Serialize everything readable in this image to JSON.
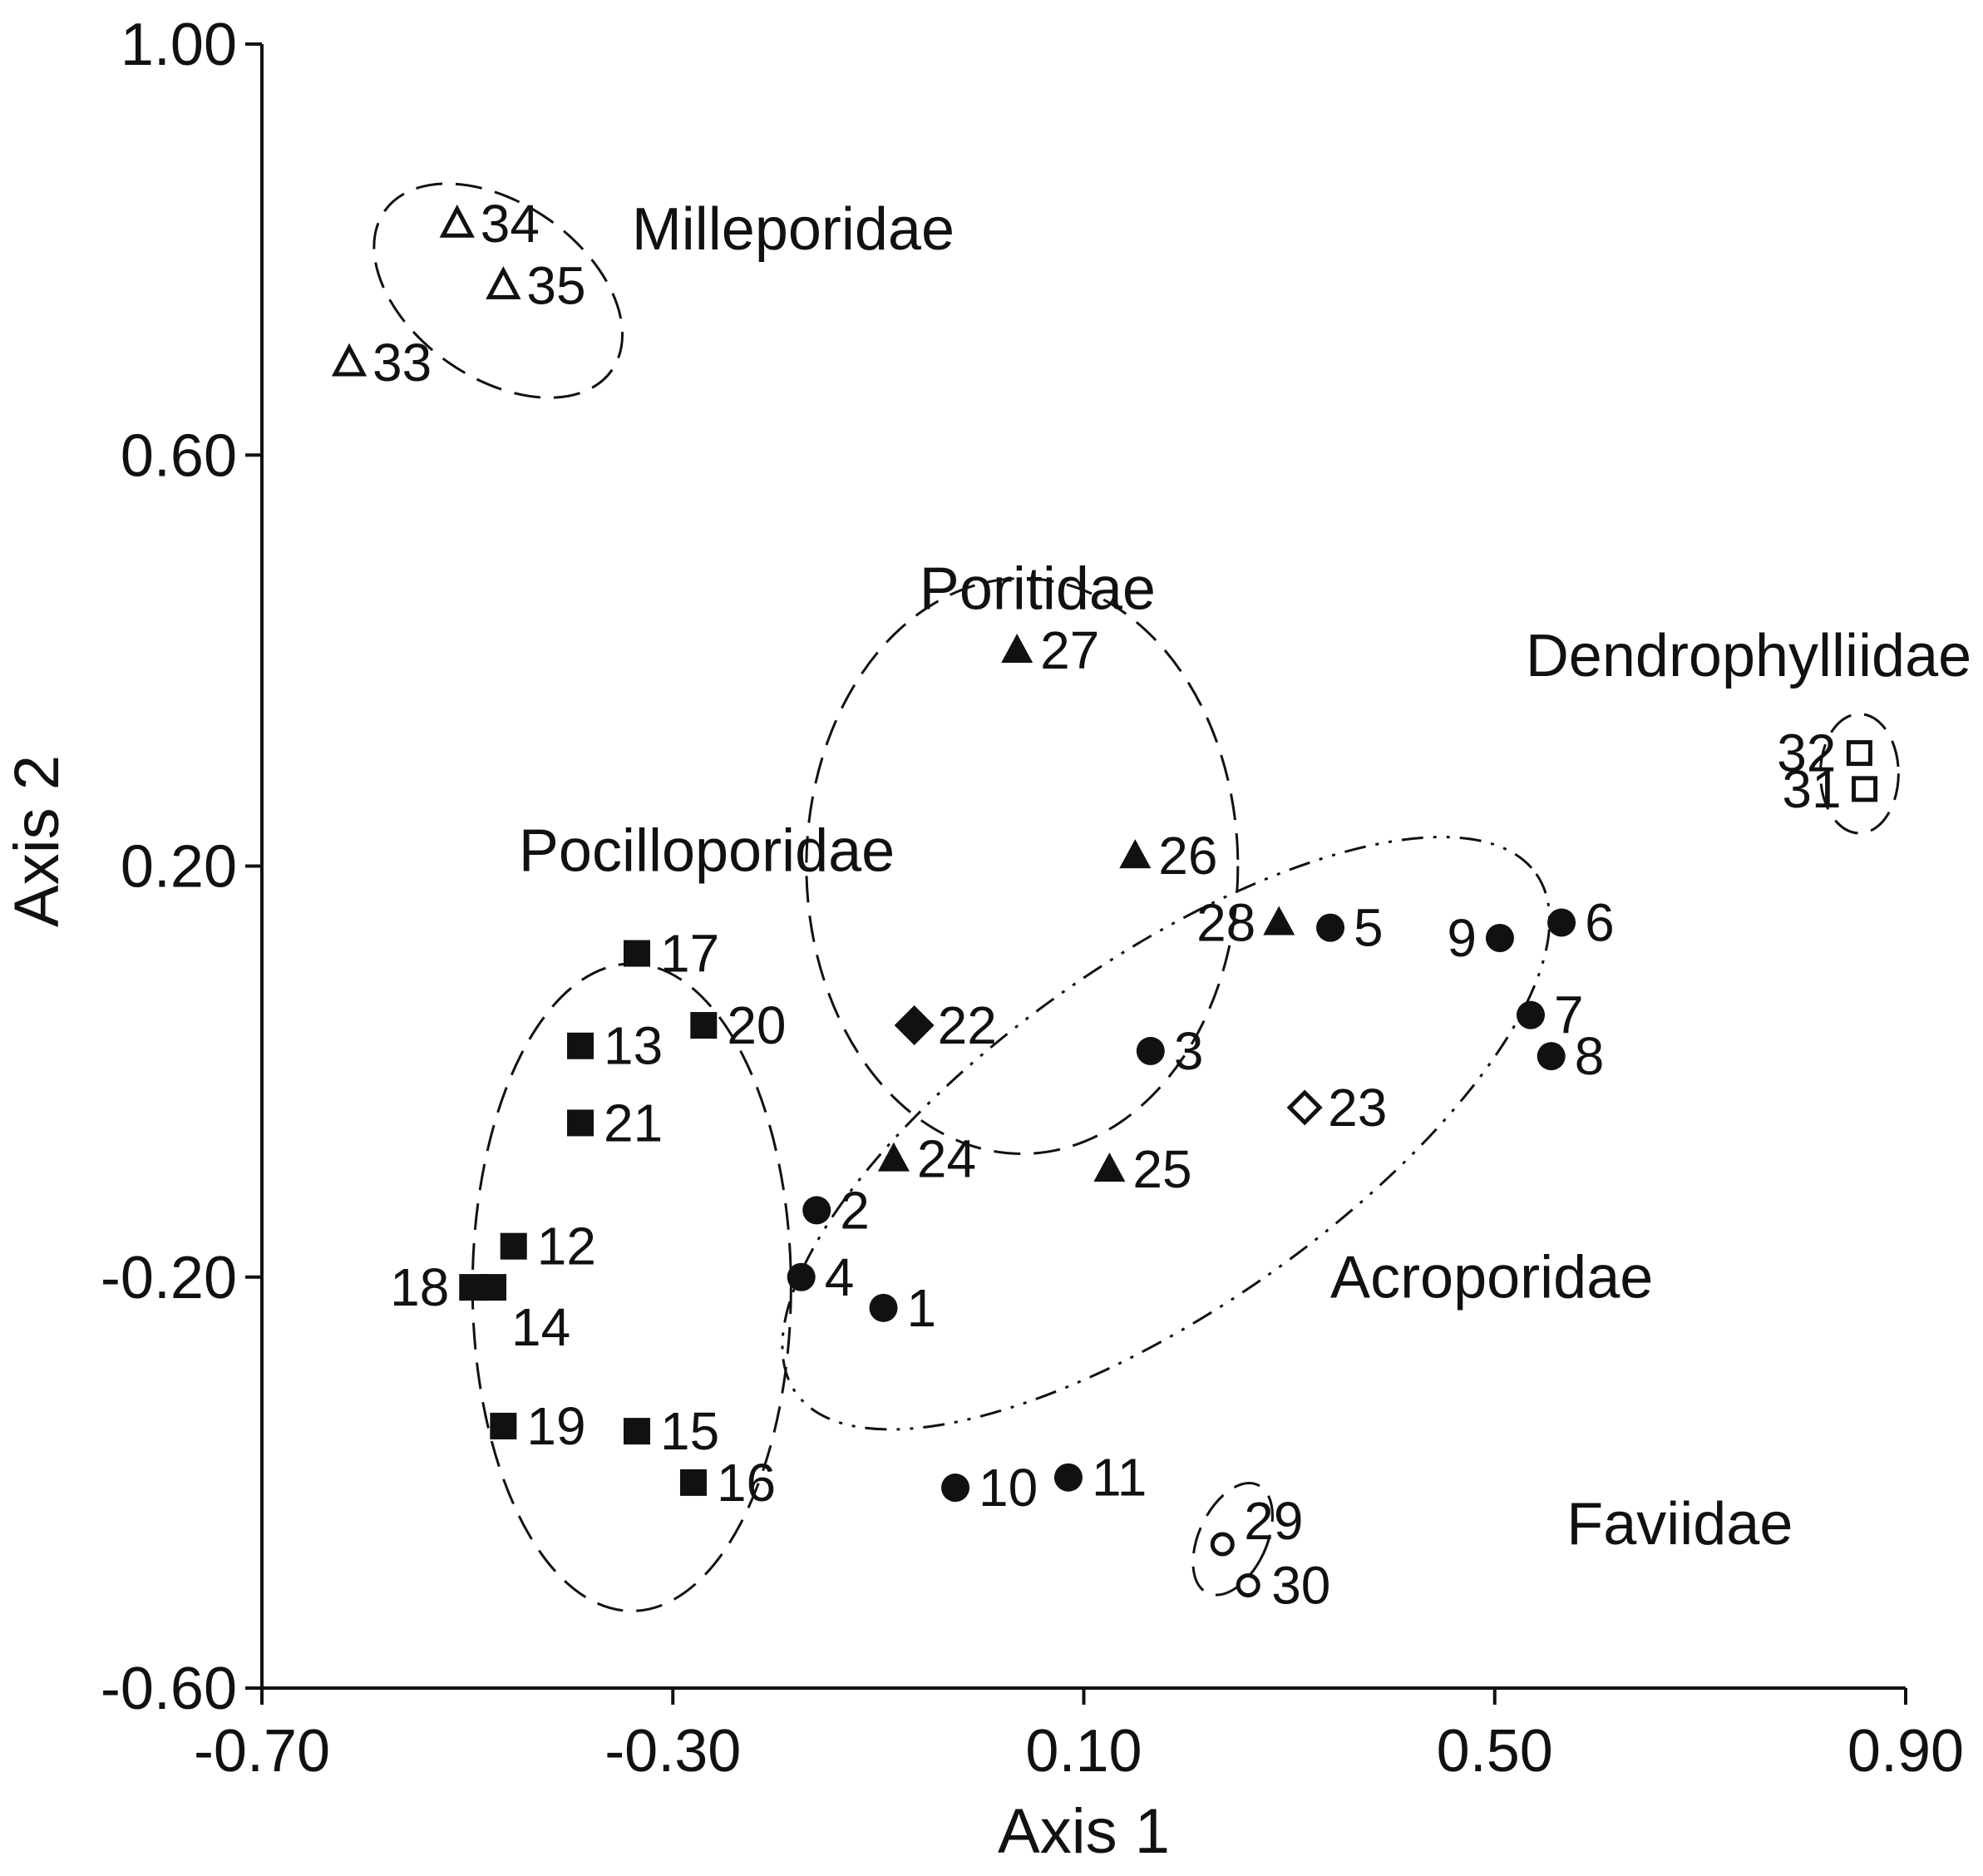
{
  "chart_data": {
    "type": "scatter",
    "title": "",
    "xlabel": "Axis 1",
    "ylabel": "Axis 2",
    "xlim": [
      -0.7,
      0.9
    ],
    "ylim": [
      -0.6,
      1.0
    ],
    "xticks": [
      "-0.70",
      "-0.30",
      "0.10",
      "0.50",
      "0.90"
    ],
    "yticks": [
      "-0.60",
      "-0.20",
      "0.20",
      "0.60",
      "1.00"
    ],
    "xtick_values": [
      -0.7,
      -0.3,
      0.1,
      0.5,
      0.9
    ],
    "ytick_values": [
      -0.6,
      -0.2,
      0.2,
      0.6,
      1.0
    ],
    "grid": false,
    "groups": [
      {
        "name": "Milleporidae",
        "marker": "open-triangle",
        "label_x": -0.34,
        "label_y": 0.8,
        "ellipse": {
          "cx": -0.47,
          "cy": 0.76,
          "rx": 0.135,
          "ry": 0.085,
          "angle": -35,
          "style": "dashed"
        }
      },
      {
        "name": "Poritidae",
        "marker": "filled-triangle",
        "label_x": -0.06,
        "label_y": 0.45,
        "ellipse": {
          "cx": 0.04,
          "cy": 0.2,
          "rx": 0.21,
          "ry": 0.28,
          "angle": 0,
          "style": "dashed"
        }
      },
      {
        "name": "Dendrophylliidae",
        "marker": "open-square",
        "label_x": 0.53,
        "label_y": 0.385,
        "ellipse": {
          "cx": 0.855,
          "cy": 0.29,
          "rx": 0.038,
          "ry": 0.058,
          "angle": 0,
          "style": "dashed"
        }
      },
      {
        "name": "Pocilloporidae",
        "marker": "filled-square",
        "label_x": -0.45,
        "label_y": 0.195,
        "ellipse": {
          "cx": -0.34,
          "cy": -0.21,
          "rx": 0.155,
          "ry": 0.315,
          "angle": 0,
          "style": "dashed"
        }
      },
      {
        "name": "Acroporidae",
        "marker": "filled-circle",
        "label_x": 0.34,
        "label_y": -0.22,
        "ellipse": {
          "cx": 0.18,
          "cy": -0.06,
          "rx": 0.44,
          "ry": 0.17,
          "angle": 35,
          "style": "dash-dot"
        }
      },
      {
        "name": "Faviidae",
        "marker": "open-circle",
        "label_x": 0.57,
        "label_y": -0.46,
        "ellipse": {
          "cx": 0.245,
          "cy": -0.455,
          "rx": 0.033,
          "ry": 0.058,
          "angle": -25,
          "style": "dashed"
        }
      },
      {
        "name": "",
        "marker": "filled-diamond",
        "label_x": null,
        "label_y": null,
        "ellipse": null
      },
      {
        "name": "",
        "marker": "open-diamond",
        "label_x": null,
        "label_y": null,
        "ellipse": null
      }
    ],
    "points": [
      {
        "id": "1",
        "group": "Acroporidae",
        "x": -0.095,
        "y": -0.23,
        "label_pos": "right"
      },
      {
        "id": "2",
        "group": "Acroporidae",
        "x": -0.16,
        "y": -0.135,
        "label_pos": "right"
      },
      {
        "id": "3",
        "group": "Acroporidae",
        "x": 0.165,
        "y": 0.02,
        "label_pos": "right"
      },
      {
        "id": "4",
        "group": "Acroporidae",
        "x": -0.175,
        "y": -0.2,
        "label_pos": "right"
      },
      {
        "id": "5",
        "group": "Acroporidae",
        "x": 0.34,
        "y": 0.14,
        "label_pos": "right"
      },
      {
        "id": "6",
        "group": "Acroporidae",
        "x": 0.565,
        "y": 0.145,
        "label_pos": "right"
      },
      {
        "id": "7",
        "group": "Acroporidae",
        "x": 0.535,
        "y": 0.055,
        "label_pos": "right"
      },
      {
        "id": "8",
        "group": "Acroporidae",
        "x": 0.555,
        "y": 0.015,
        "label_pos": "right"
      },
      {
        "id": "9",
        "group": "Acroporidae",
        "x": 0.505,
        "y": 0.13,
        "label_pos": "left"
      },
      {
        "id": "10",
        "group": "Acroporidae",
        "x": -0.025,
        "y": -0.405,
        "label_pos": "right"
      },
      {
        "id": "11",
        "group": "Acroporidae",
        "x": 0.085,
        "y": -0.395,
        "label_pos": "right"
      },
      {
        "id": "12",
        "group": "Pocilloporidae",
        "x": -0.455,
        "y": -0.17,
        "label_pos": "right"
      },
      {
        "id": "13",
        "group": "Pocilloporidae",
        "x": -0.39,
        "y": 0.025,
        "label_pos": "right"
      },
      {
        "id": "14",
        "group": "Pocilloporidae",
        "x": -0.475,
        "y": -0.21,
        "label_pos": "below-right"
      },
      {
        "id": "15",
        "group": "Pocilloporidae",
        "x": -0.335,
        "y": -0.35,
        "label_pos": "right"
      },
      {
        "id": "16",
        "group": "Pocilloporidae",
        "x": -0.28,
        "y": -0.4,
        "label_pos": "right"
      },
      {
        "id": "17",
        "group": "Pocilloporidae",
        "x": -0.335,
        "y": 0.115,
        "label_pos": "right"
      },
      {
        "id": "18",
        "group": "Pocilloporidae",
        "x": -0.495,
        "y": -0.21,
        "label_pos": "left"
      },
      {
        "id": "19",
        "group": "Pocilloporidae",
        "x": -0.465,
        "y": -0.345,
        "label_pos": "right"
      },
      {
        "id": "20",
        "group": "Pocilloporidae",
        "x": -0.27,
        "y": 0.045,
        "label_pos": "right"
      },
      {
        "id": "21",
        "group": "Pocilloporidae",
        "x": -0.39,
        "y": -0.05,
        "label_pos": "right"
      },
      {
        "id": "22",
        "group": "",
        "marker": "filled-diamond",
        "x": -0.065,
        "y": 0.045,
        "label_pos": "right"
      },
      {
        "id": "23",
        "group": "",
        "marker": "open-diamond",
        "x": 0.315,
        "y": -0.035,
        "label_pos": "right"
      },
      {
        "id": "24",
        "group": "Poritidae",
        "x": -0.085,
        "y": -0.085,
        "label_pos": "right"
      },
      {
        "id": "25",
        "group": "Poritidae",
        "x": 0.125,
        "y": -0.095,
        "label_pos": "right"
      },
      {
        "id": "26",
        "group": "Poritidae",
        "x": 0.15,
        "y": 0.21,
        "label_pos": "right"
      },
      {
        "id": "27",
        "group": "Poritidae",
        "x": 0.035,
        "y": 0.41,
        "label_pos": "right"
      },
      {
        "id": "28",
        "group": "Poritidae",
        "x": 0.29,
        "y": 0.145,
        "label_pos": "left"
      },
      {
        "id": "29",
        "group": "Faviidae",
        "x": 0.235,
        "y": -0.46,
        "label_pos": "above-right"
      },
      {
        "id": "30",
        "group": "Faviidae",
        "x": 0.26,
        "y": -0.5,
        "label_pos": "right"
      },
      {
        "id": "31",
        "group": "Dendrophylliidae",
        "x": 0.86,
        "y": 0.275,
        "label_pos": "left"
      },
      {
        "id": "32",
        "group": "Dendrophylliidae",
        "x": 0.855,
        "y": 0.31,
        "label_pos": "left"
      },
      {
        "id": "33",
        "group": "Milleporidae",
        "x": -0.615,
        "y": 0.69,
        "label_pos": "right"
      },
      {
        "id": "34",
        "group": "Milleporidae",
        "x": -0.51,
        "y": 0.825,
        "label_pos": "right"
      },
      {
        "id": "35",
        "group": "Milleporidae",
        "x": -0.465,
        "y": 0.765,
        "label_pos": "right"
      }
    ]
  }
}
